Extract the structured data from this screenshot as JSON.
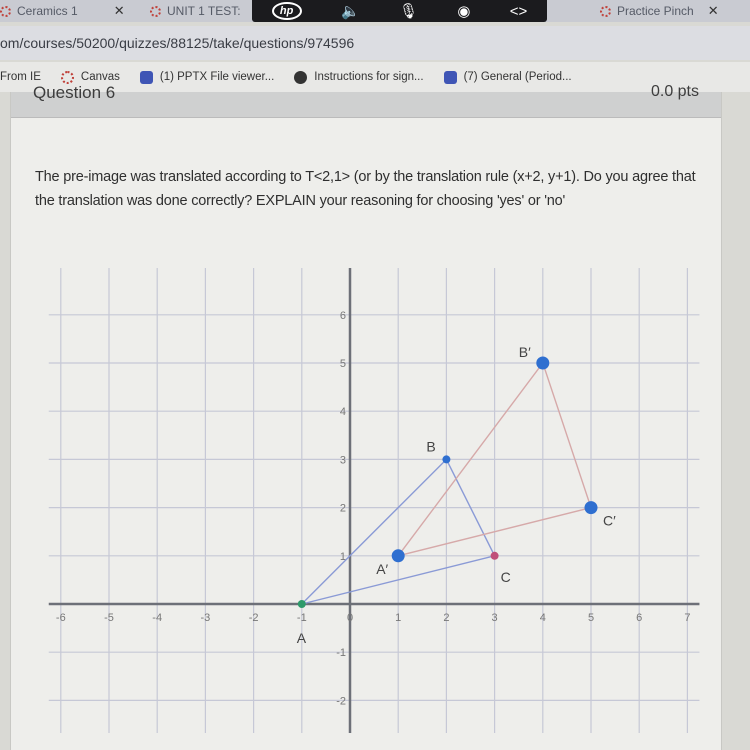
{
  "browser": {
    "tabs": [
      {
        "label": "Ceramics 1",
        "close": "✕"
      },
      {
        "label": "UNIT 1 TEST:"
      },
      {
        "label": "Practice Pinch",
        "close": "✕"
      }
    ],
    "overlay": {
      "logo": "hp",
      "icons": [
        "speaker-icon",
        "microphone-icon",
        "broadcast-icon",
        "code-icon"
      ]
    },
    "url": "om/courses/50200/quizzes/88125/take/questions/974596",
    "bookmarks": [
      {
        "label": "From IE",
        "icon": "folder-icon"
      },
      {
        "label": "Canvas",
        "icon": "canvas-icon"
      },
      {
        "label": "(1) PPTX File viewer...",
        "icon": "teams-icon"
      },
      {
        "label": "Instructions for sign...",
        "icon": "globe-icon"
      },
      {
        "label": "(7) General (Period...",
        "icon": "teams-icon"
      }
    ]
  },
  "question": {
    "title": "Question 6",
    "points": "0.0 pts",
    "text": "The pre-image was translated according to T<2,1> (or by the translation rule (x+2, y+1). Do you agree that the translation was done correctly? EXPLAIN your reasoning for choosing 'yes' or 'no'"
  },
  "graph": {
    "x_ticks": [
      -6,
      -5,
      -4,
      -3,
      -2,
      -1,
      0,
      1,
      2,
      3,
      4,
      5,
      6,
      7
    ],
    "y_ticks": [
      -2,
      -1,
      1,
      2,
      3,
      4,
      5,
      6
    ],
    "xlim": [
      -6,
      7
    ],
    "ylim": [
      -2,
      6
    ],
    "grid": true,
    "preimage": {
      "color": "#8a9ad6",
      "points": [
        {
          "label": "A",
          "x": -1,
          "y": 0,
          "color": "#2e9a6a"
        },
        {
          "label": "B",
          "x": 2,
          "y": 3,
          "color": "#2f6fd0"
        },
        {
          "label": "C",
          "x": 3,
          "y": 1,
          "color": "#c0507a"
        }
      ]
    },
    "image": {
      "color": "#d6a9a9",
      "points": [
        {
          "label": "A′",
          "x": 1,
          "y": 1,
          "color": "#2f6fd0"
        },
        {
          "label": "B′",
          "x": 4,
          "y": 5,
          "color": "#2f6fd0"
        },
        {
          "label": "C′",
          "x": 5,
          "y": 2,
          "color": "#2f6fd0"
        }
      ]
    }
  }
}
